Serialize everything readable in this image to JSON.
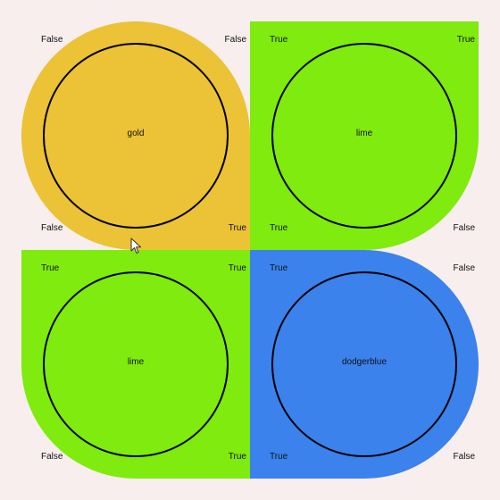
{
  "tiles": [
    {
      "label": "gold",
      "color": "#ecc236",
      "corners": {
        "top_left": "False",
        "top_right": "False",
        "bottom_left": "False",
        "bottom_right": "True"
      }
    },
    {
      "label": "lime",
      "color": "#7feb0e",
      "corners": {
        "top_left": "True",
        "top_right": "True",
        "bottom_left": "True",
        "bottom_right": "False"
      }
    },
    {
      "label": "lime",
      "color": "#7feb0e",
      "corners": {
        "top_left": "True",
        "top_right": "True",
        "bottom_left": "False",
        "bottom_right": "True"
      }
    },
    {
      "label": "dodgerblue",
      "color": "#3b82ec",
      "corners": {
        "top_left": "True",
        "top_right": "False",
        "bottom_left": "True",
        "bottom_right": "False"
      }
    }
  ],
  "ring_color": "#000000",
  "background": "#f8eeee",
  "cursor_icon": "arrow-cursor-icon"
}
